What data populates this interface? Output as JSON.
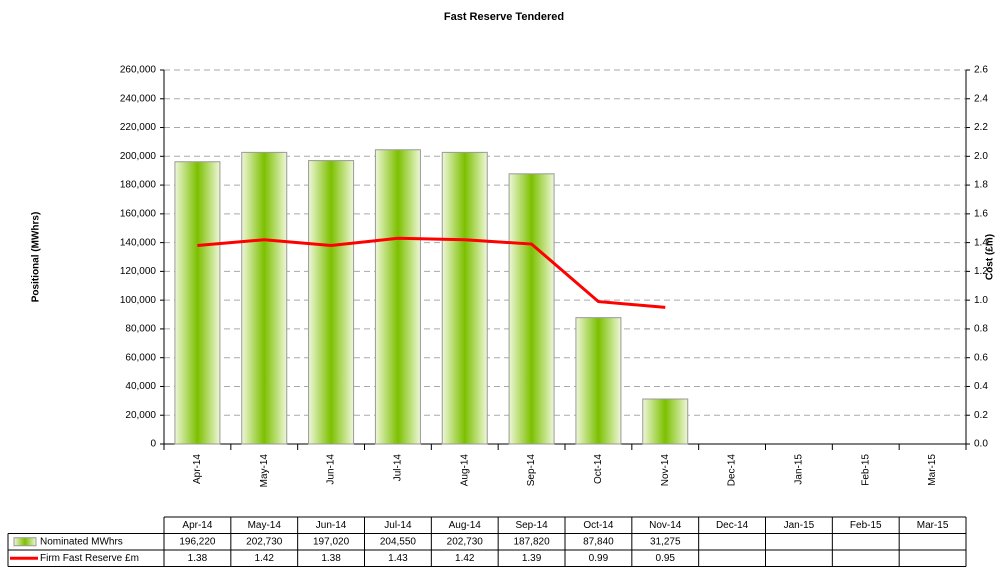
{
  "chart_data": {
    "type": "bar_line",
    "title": "Fast Reserve Tendered",
    "y_label": "Positional (MWhrs)",
    "y2_label": "Cost (£m)",
    "categories": [
      "Apr-14",
      "May-14",
      "Jun-14",
      "Jul-14",
      "Aug-14",
      "Sep-14",
      "Oct-14",
      "Nov-14",
      "Dec-14",
      "Jan-15",
      "Feb-15",
      "Mar-15"
    ],
    "series": [
      {
        "name": "Nominated MWhrs",
        "type": "bar",
        "color": "#7cc000",
        "values": [
          196220,
          202730,
          197020,
          204550,
          202730,
          187820,
          87840,
          31275,
          null,
          null,
          null,
          null
        ],
        "value_labels": [
          "196,220",
          "202,730",
          "197,020",
          "204,550",
          "202,730",
          "187,820",
          "87,840",
          "31,275",
          null,
          null,
          null,
          null
        ]
      },
      {
        "name": "Firm Fast Reserve £m",
        "type": "line",
        "axis": "y2",
        "color": "#ff0000",
        "values": [
          1.38,
          1.42,
          1.38,
          1.43,
          1.42,
          1.39,
          0.99,
          0.95,
          null,
          null,
          null,
          null
        ]
      }
    ],
    "ylim": [
      0,
      260000
    ],
    "yticks": [
      0,
      {
        "value": 20000,
        "label": "20,000"
      },
      {
        "value": 40000,
        "label": "40,000"
      },
      {
        "value": 60000,
        "label": "60,000"
      },
      {
        "value": 80000,
        "label": "80,000"
      },
      {
        "value": 100000,
        "label": "100,000"
      },
      {
        "value": 120000,
        "label": "120,000"
      },
      {
        "value": 140000,
        "label": "140,000"
      },
      {
        "value": 160000,
        "label": "160,000"
      },
      {
        "value": 180000,
        "label": "180,000"
      },
      {
        "value": 200000,
        "label": "200,000"
      },
      {
        "value": 220000,
        "label": "220,000"
      },
      {
        "value": 240000,
        "label": "240,000"
      },
      {
        "value": 260000,
        "label": "260,000"
      }
    ],
    "y2lim": [
      0,
      2.6
    ],
    "y2ticks": [
      {
        "value": 0,
        "label": "0.0"
      },
      0.2,
      0.4,
      0.6,
      0.8,
      {
        "value": 1,
        "label": "1.0"
      },
      1.2,
      1.4,
      1.6,
      1.8,
      {
        "value": 2,
        "label": "2.0"
      },
      2.2,
      2.4,
      2.6
    ],
    "grid": true
  }
}
